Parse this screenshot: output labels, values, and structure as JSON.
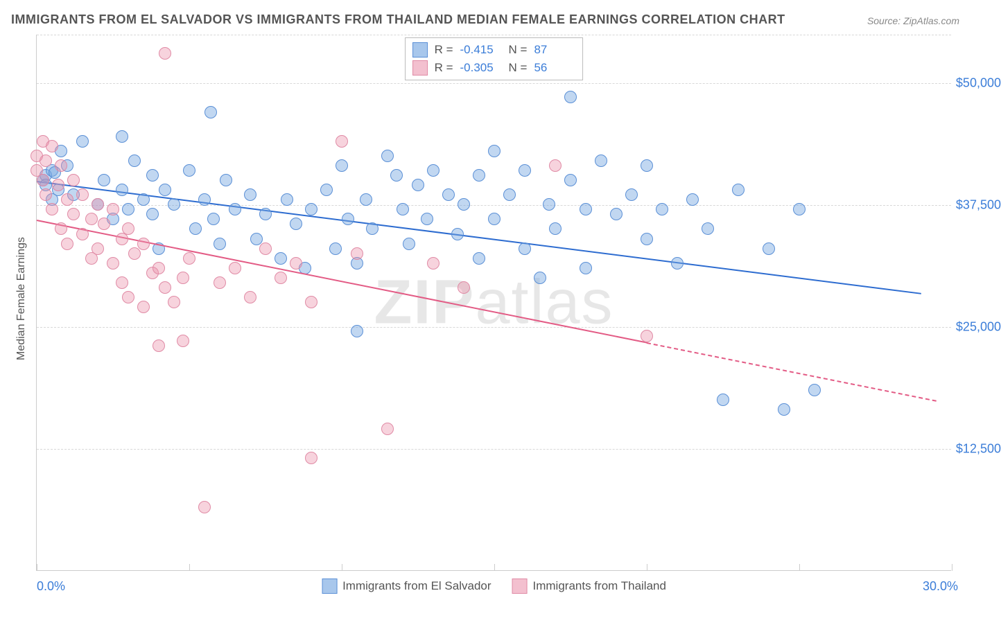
{
  "title": "IMMIGRANTS FROM EL SALVADOR VS IMMIGRANTS FROM THAILAND MEDIAN FEMALE EARNINGS CORRELATION CHART",
  "source": "Source: ZipAtlas.com",
  "ylabel": "Median Female Earnings",
  "watermark": "ZIPatlas",
  "chart": {
    "type": "scatter",
    "background_color": "#ffffff",
    "grid_color": "#d8d8d8",
    "axis_color": "#cccccc",
    "tick_label_color": "#3b7dd8",
    "tick_fontsize": 18,
    "title_fontsize": 18,
    "title_color": "#555555",
    "xlim": [
      0,
      30
    ],
    "ylim": [
      0,
      55000
    ],
    "x_ticks": [
      0,
      5,
      10,
      15,
      20,
      25,
      30
    ],
    "x_tick_labels": {
      "0": "0.0%",
      "30": "30.0%"
    },
    "y_grid": [
      12500,
      25000,
      37500,
      50000,
      55000
    ],
    "y_tick_labels": {
      "12500": "$12,500",
      "25000": "$25,000",
      "37500": "$37,500",
      "50000": "$50,000"
    },
    "point_radius": 9,
    "point_opacity": 0.55,
    "line_width": 2
  },
  "series": [
    {
      "name": "Immigrants from El Salvador",
      "color_fill": "rgba(118,166,223,0.45)",
      "color_stroke": "#5a8fd6",
      "line_color": "#2d6cd0",
      "swatch_fill": "#a8c7ec",
      "swatch_border": "#5a8fd6",
      "R": "-0.415",
      "N": "87",
      "trend": {
        "x1": 0,
        "y1": 40000,
        "x2": 29,
        "y2": 28500,
        "dashed_from": null
      },
      "points": [
        [
          0.2,
          40000
        ],
        [
          0.3,
          40500
        ],
        [
          0.3,
          39500
        ],
        [
          0.5,
          41000
        ],
        [
          0.5,
          38000
        ],
        [
          0.6,
          40800
        ],
        [
          0.7,
          39000
        ],
        [
          0.8,
          43000
        ],
        [
          1.0,
          41500
        ],
        [
          1.2,
          38500
        ],
        [
          1.5,
          44000
        ],
        [
          2.0,
          37500
        ],
        [
          2.2,
          40000
        ],
        [
          2.5,
          36000
        ],
        [
          2.8,
          39000
        ],
        [
          2.8,
          44500
        ],
        [
          3.0,
          37000
        ],
        [
          3.2,
          42000
        ],
        [
          3.5,
          38000
        ],
        [
          3.8,
          40500
        ],
        [
          3.8,
          36500
        ],
        [
          4.0,
          33000
        ],
        [
          4.2,
          39000
        ],
        [
          4.5,
          37500
        ],
        [
          5.0,
          41000
        ],
        [
          5.2,
          35000
        ],
        [
          5.5,
          38000
        ],
        [
          5.7,
          47000
        ],
        [
          5.8,
          36000
        ],
        [
          6.0,
          33500
        ],
        [
          6.2,
          40000
        ],
        [
          6.5,
          37000
        ],
        [
          7.0,
          38500
        ],
        [
          7.2,
          34000
        ],
        [
          7.5,
          36500
        ],
        [
          8.0,
          32000
        ],
        [
          8.2,
          38000
        ],
        [
          8.5,
          35500
        ],
        [
          8.8,
          31000
        ],
        [
          9.0,
          37000
        ],
        [
          9.5,
          39000
        ],
        [
          9.8,
          33000
        ],
        [
          10.0,
          41500
        ],
        [
          10.2,
          36000
        ],
        [
          10.5,
          31500
        ],
        [
          10.5,
          24500
        ],
        [
          10.8,
          38000
        ],
        [
          11.0,
          35000
        ],
        [
          11.5,
          42500
        ],
        [
          11.8,
          40500
        ],
        [
          12.0,
          37000
        ],
        [
          12.2,
          33500
        ],
        [
          12.5,
          39500
        ],
        [
          12.8,
          36000
        ],
        [
          13.0,
          41000
        ],
        [
          13.5,
          38500
        ],
        [
          13.8,
          34500
        ],
        [
          14.0,
          37500
        ],
        [
          14.5,
          40500
        ],
        [
          14.5,
          32000
        ],
        [
          15.0,
          36000
        ],
        [
          15.0,
          43000
        ],
        [
          15.5,
          38500
        ],
        [
          16.0,
          41000
        ],
        [
          16.0,
          33000
        ],
        [
          16.5,
          30000
        ],
        [
          16.8,
          37500
        ],
        [
          17.0,
          35000
        ],
        [
          17.5,
          48500
        ],
        [
          17.5,
          40000
        ],
        [
          18.0,
          37000
        ],
        [
          18.0,
          31000
        ],
        [
          18.5,
          42000
        ],
        [
          19.0,
          36500
        ],
        [
          19.5,
          38500
        ],
        [
          20.0,
          41500
        ],
        [
          20.0,
          34000
        ],
        [
          20.5,
          37000
        ],
        [
          21.0,
          31500
        ],
        [
          21.5,
          38000
        ],
        [
          22.0,
          35000
        ],
        [
          22.5,
          17500
        ],
        [
          23.0,
          39000
        ],
        [
          24.0,
          33000
        ],
        [
          24.5,
          16500
        ],
        [
          25.0,
          37000
        ],
        [
          25.5,
          18500
        ]
      ]
    },
    {
      "name": "Immigrants from Thailand",
      "color_fill": "rgba(236,145,170,0.40)",
      "color_stroke": "#e08aa5",
      "line_color": "#e35b85",
      "swatch_fill": "#f3c0cf",
      "swatch_border": "#e08aa5",
      "R": "-0.305",
      "N": "56",
      "trend": {
        "x1": 0,
        "y1": 36000,
        "x2": 29.5,
        "y2": 17500,
        "dashed_from": 20
      },
      "points": [
        [
          0.0,
          42500
        ],
        [
          0.0,
          41000
        ],
        [
          0.2,
          44000
        ],
        [
          0.2,
          40000
        ],
        [
          0.3,
          42000
        ],
        [
          0.3,
          38500
        ],
        [
          0.5,
          43500
        ],
        [
          0.5,
          37000
        ],
        [
          0.7,
          39500
        ],
        [
          0.8,
          41500
        ],
        [
          0.8,
          35000
        ],
        [
          1.0,
          38000
        ],
        [
          1.0,
          33500
        ],
        [
          1.2,
          36500
        ],
        [
          1.2,
          40000
        ],
        [
          1.5,
          34500
        ],
        [
          1.5,
          38500
        ],
        [
          1.8,
          36000
        ],
        [
          1.8,
          32000
        ],
        [
          2.0,
          37500
        ],
        [
          2.0,
          33000
        ],
        [
          2.2,
          35500
        ],
        [
          2.5,
          31500
        ],
        [
          2.5,
          37000
        ],
        [
          2.8,
          29500
        ],
        [
          2.8,
          34000
        ],
        [
          3.0,
          35000
        ],
        [
          3.0,
          28000
        ],
        [
          3.2,
          32500
        ],
        [
          3.5,
          27000
        ],
        [
          3.5,
          33500
        ],
        [
          3.8,
          30500
        ],
        [
          4.0,
          23000
        ],
        [
          4.0,
          31000
        ],
        [
          4.2,
          29000
        ],
        [
          4.2,
          53000
        ],
        [
          4.5,
          27500
        ],
        [
          4.8,
          30000
        ],
        [
          4.8,
          23500
        ],
        [
          5.0,
          32000
        ],
        [
          5.5,
          6500
        ],
        [
          6.0,
          29500
        ],
        [
          6.5,
          31000
        ],
        [
          7.0,
          28000
        ],
        [
          7.5,
          33000
        ],
        [
          8.0,
          30000
        ],
        [
          8.5,
          31500
        ],
        [
          9.0,
          27500
        ],
        [
          9.0,
          11500
        ],
        [
          10.0,
          44000
        ],
        [
          10.5,
          32500
        ],
        [
          11.5,
          14500
        ],
        [
          13.0,
          31500
        ],
        [
          14.0,
          29000
        ],
        [
          17.0,
          41500
        ],
        [
          20.0,
          24000
        ]
      ]
    }
  ],
  "legend_bottom": [
    {
      "label": "Immigrants from El Salvador",
      "series": 0
    },
    {
      "label": "Immigrants from Thailand",
      "series": 1
    }
  ]
}
